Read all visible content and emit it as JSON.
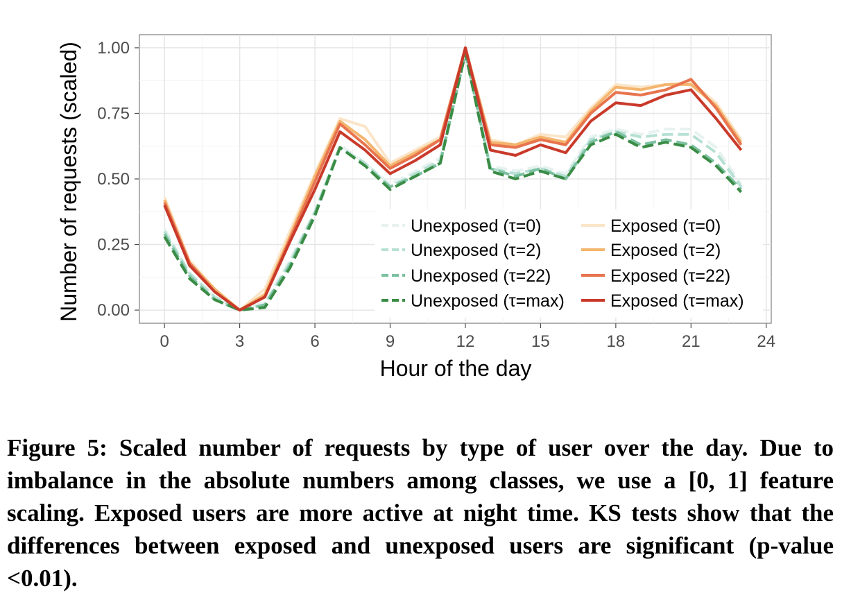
{
  "chart_data": {
    "type": "line",
    "title": "",
    "xlabel": "Hour of the day",
    "ylabel": "Number of requests (scaled)",
    "xlim": [
      -1.0,
      24.2
    ],
    "ylim": [
      -0.05,
      1.05
    ],
    "xticks": [
      0,
      3,
      6,
      9,
      12,
      15,
      18,
      21,
      24
    ],
    "xtick_labels": [
      "0",
      "3",
      "6",
      "9",
      "12",
      "15",
      "18",
      "21",
      "24"
    ],
    "yticks": [
      0.0,
      0.25,
      0.5,
      0.75,
      1.0
    ],
    "ytick_labels": [
      "0.00",
      "0.25",
      "0.50",
      "0.75",
      "1.00"
    ],
    "grid": true,
    "legend_position": "bottom-right",
    "x": [
      0,
      1,
      2,
      3,
      4,
      5,
      6,
      7,
      8,
      9,
      10,
      11,
      12,
      13,
      14,
      15,
      16,
      17,
      18,
      19,
      20,
      21,
      22,
      23
    ],
    "series": [
      {
        "name": "Unexposed (τ=0)",
        "color": "#e6f2ef",
        "style": "dashed",
        "values": [
          0.31,
          0.14,
          0.05,
          0.0,
          0.03,
          0.19,
          0.38,
          0.63,
          0.56,
          0.48,
          0.53,
          0.58,
          0.99,
          0.55,
          0.53,
          0.55,
          0.52,
          0.66,
          0.69,
          0.67,
          0.69,
          0.69,
          0.62,
          0.48
        ]
      },
      {
        "name": "Unexposed (τ=2)",
        "color": "#b6e0d3",
        "style": "dashed",
        "values": [
          0.3,
          0.14,
          0.05,
          0.0,
          0.02,
          0.18,
          0.37,
          0.62,
          0.56,
          0.47,
          0.52,
          0.57,
          0.99,
          0.54,
          0.52,
          0.54,
          0.51,
          0.65,
          0.68,
          0.66,
          0.67,
          0.67,
          0.6,
          0.47
        ]
      },
      {
        "name": "Unexposed (τ=22)",
        "color": "#7cc1a1",
        "style": "dashed",
        "values": [
          0.29,
          0.13,
          0.04,
          0.0,
          0.02,
          0.17,
          0.37,
          0.62,
          0.55,
          0.47,
          0.51,
          0.56,
          0.98,
          0.54,
          0.51,
          0.54,
          0.5,
          0.64,
          0.68,
          0.63,
          0.65,
          0.63,
          0.56,
          0.46
        ]
      },
      {
        "name": "Unexposed (τ=max)",
        "color": "#3a8c45",
        "style": "dashed",
        "values": [
          0.28,
          0.12,
          0.04,
          0.0,
          0.01,
          0.16,
          0.36,
          0.62,
          0.55,
          0.46,
          0.51,
          0.56,
          0.98,
          0.53,
          0.5,
          0.53,
          0.5,
          0.63,
          0.67,
          0.62,
          0.64,
          0.62,
          0.55,
          0.45
        ]
      },
      {
        "name": "Exposed (τ=0)",
        "color": "#fbe5c8",
        "style": "solid",
        "values": [
          0.43,
          0.19,
          0.08,
          0.0,
          0.08,
          0.3,
          0.52,
          0.73,
          0.7,
          0.56,
          0.61,
          0.66,
          1.0,
          0.65,
          0.63,
          0.67,
          0.66,
          0.77,
          0.86,
          0.85,
          0.86,
          0.87,
          0.79,
          0.65
        ]
      },
      {
        "name": "Exposed (τ=2)",
        "color": "#f4b56e",
        "style": "solid",
        "values": [
          0.42,
          0.18,
          0.08,
          0.0,
          0.06,
          0.28,
          0.51,
          0.72,
          0.65,
          0.55,
          0.6,
          0.65,
          1.0,
          0.64,
          0.63,
          0.66,
          0.64,
          0.76,
          0.85,
          0.84,
          0.86,
          0.86,
          0.78,
          0.64
        ]
      },
      {
        "name": "Exposed (τ=22)",
        "color": "#e8744e",
        "style": "solid",
        "values": [
          0.41,
          0.18,
          0.07,
          0.0,
          0.05,
          0.27,
          0.49,
          0.71,
          0.63,
          0.54,
          0.59,
          0.65,
          1.0,
          0.63,
          0.62,
          0.65,
          0.63,
          0.75,
          0.83,
          0.82,
          0.84,
          0.88,
          0.77,
          0.63
        ]
      },
      {
        "name": "Exposed (τ=max)",
        "color": "#c93a2a",
        "style": "solid",
        "values": [
          0.4,
          0.17,
          0.07,
          0.0,
          0.05,
          0.26,
          0.46,
          0.68,
          0.61,
          0.52,
          0.57,
          0.63,
          1.0,
          0.61,
          0.59,
          0.63,
          0.6,
          0.72,
          0.79,
          0.78,
          0.82,
          0.84,
          0.73,
          0.61
        ]
      }
    ]
  },
  "caption": {
    "figure_label": "Figure 5:",
    "text": "Scaled number of requests by type of user over the day. Due to imbalance in the absolute numbers among classes, we use a [0, 1] feature scaling. Exposed users are more active at night time. KS tests show that the differences between exposed and unexposed users are significant (p-value <0.01)."
  }
}
